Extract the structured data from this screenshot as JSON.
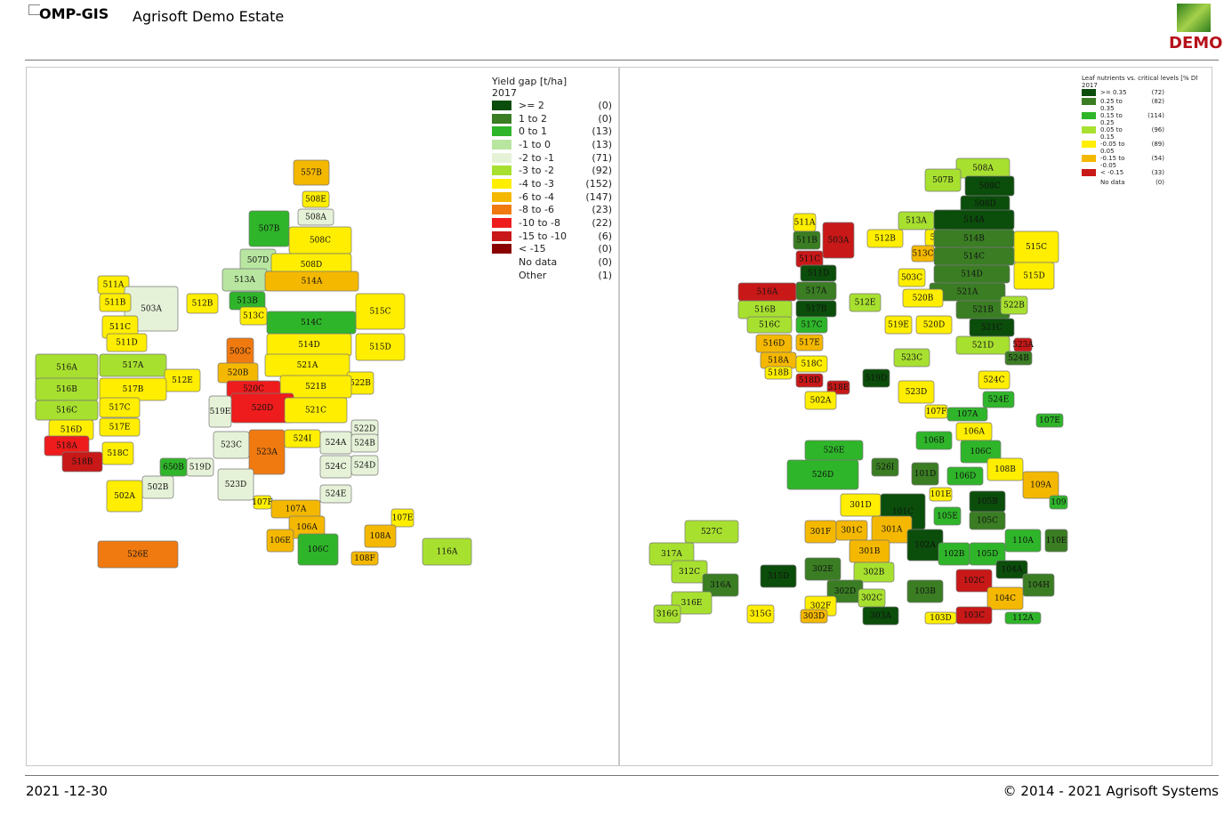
{
  "header": {
    "logo": "OMP-GIS",
    "estate": "Agrisoft Demo Estate",
    "badge": "DEMO"
  },
  "maps": [
    {
      "legend": {
        "title": "Yield gap [t/ha]",
        "year": "2017",
        "items": [
          {
            "label": ">= 2",
            "count": "(0)",
            "color": "#0b4d0b"
          },
          {
            "label": "1 to 2",
            "count": "(0)",
            "color": "#3a7d23"
          },
          {
            "label": "0 to 1",
            "count": "(13)",
            "color": "#2fb52a"
          },
          {
            "label": "-1 to 0",
            "count": "(13)",
            "color": "#b8e6a0"
          },
          {
            "label": "-2 to -1",
            "count": "(71)",
            "color": "#e6f2d8"
          },
          {
            "label": "-3 to -2",
            "count": "(92)",
            "color": "#a8e030"
          },
          {
            "label": "-4 to -3",
            "count": "(152)",
            "color": "#ffee00"
          },
          {
            "label": "-6 to -4",
            "count": "(147)",
            "color": "#f5b800"
          },
          {
            "label": "-8 to -6",
            "count": "(23)",
            "color": "#f07a10"
          },
          {
            "label": "-10 to -8",
            "count": "(22)",
            "color": "#ee1c1c"
          },
          {
            "label": "-15 to -10",
            "count": "(6)",
            "color": "#c81818"
          },
          {
            "label": "< -15",
            "count": "(0)",
            "color": "#8a0000"
          },
          {
            "label": "No data",
            "count": "(0)",
            "color": "#ffffff"
          },
          {
            "label": "Other",
            "count": "(1)",
            "color": "#ffffff"
          }
        ]
      },
      "fields": [
        {
          "label": "557B",
          "color": "#f5b800"
        },
        {
          "label": "508E",
          "color": "#ffee00"
        },
        {
          "label": "508A",
          "color": "#e6f2d8"
        },
        {
          "label": "507B",
          "color": "#2fb52a"
        },
        {
          "label": "508C",
          "color": "#ffee00"
        },
        {
          "label": "507D",
          "color": "#b8e6a0"
        },
        {
          "label": "508D",
          "color": "#ffee00"
        },
        {
          "label": "513A",
          "color": "#b8e6a0"
        },
        {
          "label": "514A",
          "color": "#f5b800"
        },
        {
          "label": "511A",
          "color": "#ffee00"
        },
        {
          "label": "503A",
          "color": "#e6f2d8"
        },
        {
          "label": "512B",
          "color": "#ffee00"
        },
        {
          "label": "513B",
          "color": "#2fb52a"
        },
        {
          "label": "515C",
          "color": "#ffee00"
        },
        {
          "label": "511B",
          "color": "#ffee00"
        },
        {
          "label": "513C",
          "color": "#ffee00"
        },
        {
          "label": "514C",
          "color": "#2fb52a"
        },
        {
          "label": "511C",
          "color": "#ffee00"
        },
        {
          "label": "511D",
          "color": "#ffee00"
        },
        {
          "label": "514D",
          "color": "#ffee00"
        },
        {
          "label": "503C",
          "color": "#f07a10"
        },
        {
          "label": "515D",
          "color": "#ffee00"
        },
        {
          "label": "516A",
          "color": "#a8e030"
        },
        {
          "label": "517A",
          "color": "#a8e030"
        },
        {
          "label": "521A",
          "color": "#ffee00"
        },
        {
          "label": "512E",
          "color": "#ffee00"
        },
        {
          "label": "520B",
          "color": "#f5b800"
        },
        {
          "label": "522B",
          "color": "#ffee00"
        },
        {
          "label": "516B",
          "color": "#a8e030"
        },
        {
          "label": "517B",
          "color": "#ffee00"
        },
        {
          "label": "521B",
          "color": "#ffee00"
        },
        {
          "label": "520C",
          "color": "#ee1c1c"
        },
        {
          "label": "520D",
          "color": "#ee1c1c"
        },
        {
          "label": "519E",
          "color": "#e6f2d8"
        },
        {
          "label": "516C",
          "color": "#a8e030"
        },
        {
          "label": "517C",
          "color": "#ffee00"
        },
        {
          "label": "521C",
          "color": "#ffee00"
        },
        {
          "label": "516D",
          "color": "#ffee00"
        },
        {
          "label": "517E",
          "color": "#ffee00"
        },
        {
          "label": "522D",
          "color": "#e6f2d8"
        },
        {
          "label": "518A",
          "color": "#ee1c1c"
        },
        {
          "label": "523C",
          "color": "#e6f2d8"
        },
        {
          "label": "523A",
          "color": "#f07a10"
        },
        {
          "label": "524I",
          "color": "#ffee00"
        },
        {
          "label": "524A",
          "color": "#e6f2d8"
        },
        {
          "label": "524B",
          "color": "#e6f2d8"
        },
        {
          "label": "518C",
          "color": "#ffee00"
        },
        {
          "label": "518B",
          "color": "#c81818"
        },
        {
          "label": "650B",
          "color": "#2fb52a"
        },
        {
          "label": "519D",
          "color": "#e6f2d8"
        },
        {
          "label": "524C",
          "color": "#e6f2d8"
        },
        {
          "label": "524D",
          "color": "#e6f2d8"
        },
        {
          "label": "502B",
          "color": "#e6f2d8"
        },
        {
          "label": "523D",
          "color": "#e6f2d8"
        },
        {
          "label": "502A",
          "color": "#ffee00"
        },
        {
          "label": "524E",
          "color": "#e6f2d8"
        },
        {
          "label": "107F",
          "color": "#ffee00"
        },
        {
          "label": "107A",
          "color": "#f5b800"
        },
        {
          "label": "107E",
          "color": "#ffee00"
        },
        {
          "label": "106A",
          "color": "#f5b800"
        },
        {
          "label": "108A",
          "color": "#f5b800"
        },
        {
          "label": "106E",
          "color": "#f5b800"
        },
        {
          "label": "106C",
          "color": "#2fb52a"
        },
        {
          "label": "116A",
          "color": "#a8e030"
        },
        {
          "label": "108F",
          "color": "#f5b800"
        },
        {
          "label": "526E",
          "color": "#f07a10"
        }
      ]
    },
    {
      "legend": {
        "title": "Leaf nutrients vs. critical levels [% DM] - N",
        "year": "2017",
        "items": [
          {
            "label": ">= 0.35",
            "count": "(72)",
            "color": "#0b4d0b"
          },
          {
            "label": "0.25 to 0.35",
            "count": "(82)",
            "color": "#3a7d23"
          },
          {
            "label": "0.15 to 0.25",
            "count": "(114)",
            "color": "#2fb52a"
          },
          {
            "label": "0.05 to 0.15",
            "count": "(96)",
            "color": "#a8e030"
          },
          {
            "label": "-0.05 to 0.05",
            "count": "(89)",
            "color": "#ffee00"
          },
          {
            "label": "-0.15 to -0.05",
            "count": "(54)",
            "color": "#f5b800"
          },
          {
            "label": "< -0.15",
            "count": "(33)",
            "color": "#c81818"
          },
          {
            "label": "No data",
            "count": "(0)",
            "color": "#ffffff"
          }
        ]
      },
      "fields": [
        {
          "label": "508A",
          "color": "#a8e030"
        },
        {
          "label": "507B",
          "color": "#a8e030"
        },
        {
          "label": "508C",
          "color": "#0b4d0b"
        },
        {
          "label": "508D",
          "color": "#0b4d0b"
        },
        {
          "label": "511A",
          "color": "#ffee00"
        },
        {
          "label": "503A",
          "color": "#c81818"
        },
        {
          "label": "513A",
          "color": "#a8e030"
        },
        {
          "label": "514A",
          "color": "#0b4d0b"
        },
        {
          "label": "511B",
          "color": "#3a7d23"
        },
        {
          "label": "512B",
          "color": "#ffee00"
        },
        {
          "label": "513B",
          "color": "#ffee00"
        },
        {
          "label": "514B",
          "color": "#3a7d23"
        },
        {
          "label": "515C",
          "color": "#ffee00"
        },
        {
          "label": "513C",
          "color": "#f5b800"
        },
        {
          "label": "514C",
          "color": "#3a7d23"
        },
        {
          "label": "511C",
          "color": "#c81818"
        },
        {
          "label": "511D",
          "color": "#0b4d0b"
        },
        {
          "label": "514D",
          "color": "#3a7d23"
        },
        {
          "label": "503C",
          "color": "#ffee00"
        },
        {
          "label": "515D",
          "color": "#ffee00"
        },
        {
          "label": "516A",
          "color": "#c81818"
        },
        {
          "label": "517A",
          "color": "#3a7d23"
        },
        {
          "label": "521A",
          "color": "#3a7d23"
        },
        {
          "label": "520B",
          "color": "#ffee00"
        },
        {
          "label": "512E",
          "color": "#a8e030"
        },
        {
          "label": "516B",
          "color": "#a8e030"
        },
        {
          "label": "517B",
          "color": "#0b4d0b"
        },
        {
          "label": "521B",
          "color": "#3a7d23"
        },
        {
          "label": "522B",
          "color": "#a8e030"
        },
        {
          "label": "516C",
          "color": "#a8e030"
        },
        {
          "label": "517C",
          "color": "#2fb52a"
        },
        {
          "label": "519E",
          "color": "#ffee00"
        },
        {
          "label": "520D",
          "color": "#ffee00"
        },
        {
          "label": "521C",
          "color": "#0b4d0b"
        },
        {
          "label": "516D",
          "color": "#f5b800"
        },
        {
          "label": "517E",
          "color": "#f5b800"
        },
        {
          "label": "521D",
          "color": "#a8e030"
        },
        {
          "label": "523A",
          "color": "#c81818"
        },
        {
          "label": "518A",
          "color": "#f5b800"
        },
        {
          "label": "523C",
          "color": "#a8e030"
        },
        {
          "label": "524B",
          "color": "#3a7d23"
        },
        {
          "label": "518C",
          "color": "#ffee00"
        },
        {
          "label": "518B",
          "color": "#ffee00"
        },
        {
          "label": "519D",
          "color": "#0b4d0b"
        },
        {
          "label": "524C",
          "color": "#ffee00"
        },
        {
          "label": "518D",
          "color": "#c81818"
        },
        {
          "label": "518E",
          "color": "#c81818"
        },
        {
          "label": "523D",
          "color": "#ffee00"
        },
        {
          "label": "502A",
          "color": "#ffee00"
        },
        {
          "label": "524E",
          "color": "#2fb52a"
        },
        {
          "label": "107F",
          "color": "#ffee00"
        },
        {
          "label": "107A",
          "color": "#2fb52a"
        },
        {
          "label": "107E",
          "color": "#2fb52a"
        },
        {
          "label": "106A",
          "color": "#ffee00"
        },
        {
          "label": "106B",
          "color": "#2fb52a"
        },
        {
          "label": "526E",
          "color": "#2fb52a"
        },
        {
          "label": "106C",
          "color": "#2fb52a"
        },
        {
          "label": "526D",
          "color": "#2fb52a"
        },
        {
          "label": "526I",
          "color": "#3a7d23"
        },
        {
          "label": "101D",
          "color": "#3a7d23"
        },
        {
          "label": "108B",
          "color": "#ffee00"
        },
        {
          "label": "106D",
          "color": "#2fb52a"
        },
        {
          "label": "109A",
          "color": "#f5b800"
        },
        {
          "label": "101E",
          "color": "#ffee00"
        },
        {
          "label": "301D",
          "color": "#ffee00"
        },
        {
          "label": "101C",
          "color": "#0b4d0b"
        },
        {
          "label": "105B",
          "color": "#0b4d0b"
        },
        {
          "label": "109",
          "color": "#2fb52a"
        },
        {
          "label": "105E",
          "color": "#2fb52a"
        },
        {
          "label": "105C",
          "color": "#3a7d23"
        },
        {
          "label": "527C",
          "color": "#a8e030"
        },
        {
          "label": "301F",
          "color": "#f5b800"
        },
        {
          "label": "301C",
          "color": "#f5b800"
        },
        {
          "label": "301A",
          "color": "#f5b800"
        },
        {
          "label": "110A",
          "color": "#2fb52a"
        },
        {
          "label": "110E",
          "color": "#3a7d23"
        },
        {
          "label": "317A",
          "color": "#a8e030"
        },
        {
          "label": "301B",
          "color": "#f5b800"
        },
        {
          "label": "102A",
          "color": "#0b4d0b"
        },
        {
          "label": "102B",
          "color": "#2fb52a"
        },
        {
          "label": "105D",
          "color": "#2fb52a"
        },
        {
          "label": "302E",
          "color": "#3a7d23"
        },
        {
          "label": "302B",
          "color": "#a8e030"
        },
        {
          "label": "104A",
          "color": "#0b4d0b"
        },
        {
          "label": "102C",
          "color": "#c81818"
        },
        {
          "label": "312C",
          "color": "#a8e030"
        },
        {
          "label": "315D",
          "color": "#0b4d0b"
        },
        {
          "label": "316A",
          "color": "#3a7d23"
        },
        {
          "label": "104H",
          "color": "#3a7d23"
        },
        {
          "label": "302D",
          "color": "#3a7d23"
        },
        {
          "label": "103B",
          "color": "#3a7d23"
        },
        {
          "label": "104C",
          "color": "#f5b800"
        },
        {
          "label": "316E",
          "color": "#a8e030"
        },
        {
          "label": "302F",
          "color": "#ffee00"
        },
        {
          "label": "302C",
          "color": "#a8e030"
        },
        {
          "label": "315G",
          "color": "#ffee00"
        },
        {
          "label": "303D",
          "color": "#f5b800"
        },
        {
          "label": "303A",
          "color": "#0b4d0b"
        },
        {
          "label": "316G",
          "color": "#a8e030"
        },
        {
          "label": "103D",
          "color": "#ffee00"
        },
        {
          "label": "103C",
          "color": "#c81818"
        },
        {
          "label": "112A",
          "color": "#2fb52a"
        }
      ]
    }
  ],
  "footer": {
    "date": "2021 -12-30",
    "copyright": "© 2014 - 2021 Agrisoft Systems"
  }
}
